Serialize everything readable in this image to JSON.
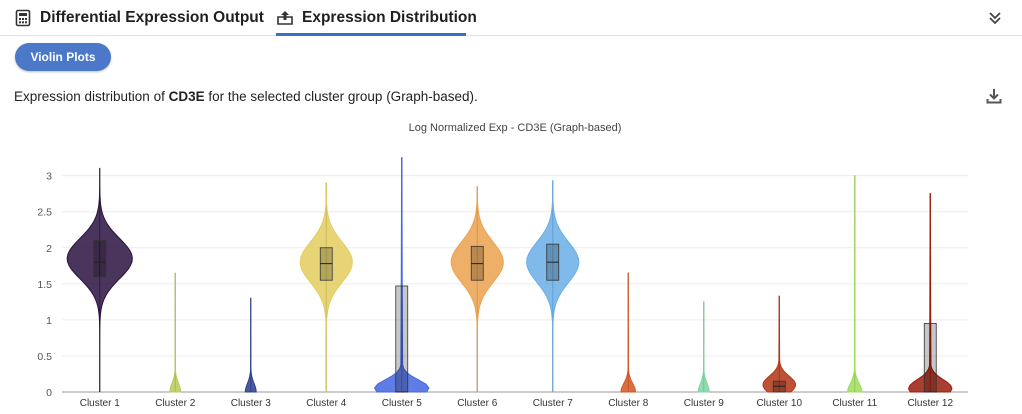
{
  "tabs": [
    {
      "label": "Differential Expression Output",
      "icon": "calculator-icon",
      "active": false
    },
    {
      "label": "Expression Distribution",
      "icon": "distribution-icon",
      "active": true
    }
  ],
  "toolbar": {
    "violin_label": "Violin Plots"
  },
  "description": {
    "prefix": "Expression distribution of ",
    "gene": "CD3E",
    "suffix": " for the selected cluster group (Graph-based)."
  },
  "colors": {
    "accent": "#3e6fc6",
    "button": "#4b78c8"
  },
  "chart_data": {
    "type": "violin",
    "title": "Log Normalized Exp - CD3E (Graph-based)",
    "xlabel": "",
    "ylabel": "",
    "ylim": [
      0,
      3.3
    ],
    "yticks": [
      0,
      0.5,
      1,
      1.5,
      2,
      2.5,
      3
    ],
    "grid": true,
    "categories": [
      "Cluster 1",
      "Cluster 2",
      "Cluster 3",
      "Cluster 4",
      "Cluster 5",
      "Cluster 6",
      "Cluster 7",
      "Cluster 8",
      "Cluster 9",
      "Cluster 10",
      "Cluster 11",
      "Cluster 12"
    ],
    "series": [
      {
        "color": "#2a1240",
        "max": 3.1,
        "q1": 1.6,
        "median": 1.8,
        "q3": 2.1,
        "peak": 1.85,
        "width": 0.9,
        "floor": 0.5
      },
      {
        "color": "#b9c95a",
        "max": 1.65,
        "q1": 0,
        "median": 0,
        "q3": 0,
        "peak": 0,
        "width": 0.15,
        "floor": 0
      },
      {
        "color": "#2b3f8c",
        "max": 1.3,
        "q1": 0,
        "median": 0,
        "q3": 0,
        "peak": 0,
        "width": 0.15,
        "floor": 0
      },
      {
        "color": "#e3cd5e",
        "max": 2.9,
        "q1": 1.55,
        "median": 1.78,
        "q3": 2.0,
        "peak": 1.8,
        "width": 0.72,
        "floor": 0.5
      },
      {
        "color": "#4466e0",
        "max": 3.25,
        "q1": 0,
        "median": 0,
        "q3": 1.47,
        "peak": 0.05,
        "width": 0.75,
        "floor": 0
      },
      {
        "color": "#eba24f",
        "max": 2.85,
        "q1": 1.55,
        "median": 1.78,
        "q3": 2.02,
        "peak": 1.8,
        "width": 0.72,
        "floor": 0.5
      },
      {
        "color": "#6aaee6",
        "max": 2.93,
        "q1": 1.55,
        "median": 1.8,
        "q3": 2.05,
        "peak": 1.8,
        "width": 0.72,
        "floor": 0.5
      },
      {
        "color": "#d65522",
        "max": 1.65,
        "q1": 0,
        "median": 0,
        "q3": 0,
        "peak": 0,
        "width": 0.2,
        "floor": 0
      },
      {
        "color": "#7ed6a0",
        "max": 1.25,
        "q1": 0,
        "median": 0,
        "q3": 0,
        "peak": 0,
        "width": 0.15,
        "floor": 0
      },
      {
        "color": "#b23414",
        "max": 1.33,
        "q1": 0,
        "median": 0.08,
        "q3": 0.15,
        "peak": 0.1,
        "width": 0.45,
        "floor": 0
      },
      {
        "color": "#9edc5a",
        "max": 3.0,
        "q1": 0,
        "median": 0,
        "q3": 0,
        "peak": 0,
        "width": 0.2,
        "floor": 0
      },
      {
        "color": "#9b1c0c",
        "max": 2.75,
        "q1": 0,
        "median": 0,
        "q3": 0.95,
        "peak": 0.05,
        "width": 0.6,
        "floor": 0
      }
    ]
  }
}
